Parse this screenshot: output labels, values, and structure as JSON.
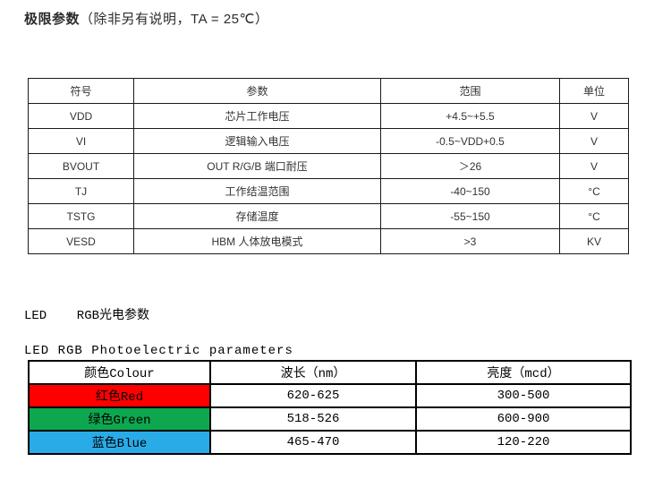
{
  "page": {
    "title_bold": "极限参数",
    "title_rest": "（除非另有说明，TA = 25℃）"
  },
  "limits_table": {
    "headers": [
      "符号",
      "参数",
      "范围",
      "单位"
    ],
    "rows": [
      [
        "VDD",
        "芯片工作电压",
        "+4.5~+5.5",
        "V"
      ],
      [
        "VI",
        "逻辑输入电压",
        "-0.5~VDD+0.5",
        "V"
      ],
      [
        "BVOUT",
        "OUT R/G/B 端口耐压",
        "＞26",
        "V"
      ],
      [
        "TJ",
        "工作结温范围",
        "-40~150",
        "°C"
      ],
      [
        "TSTG",
        "存储温度",
        "-55~150",
        "°C"
      ],
      [
        "VESD",
        "HBM 人体放电模式",
        ">3",
        "KV"
      ]
    ]
  },
  "led_section": {
    "heading_cn": "LED    RGB光电参数",
    "heading_en": "LED RGB Photoelectric parameters"
  },
  "rgb_table": {
    "headers": [
      "颜色Colour",
      "波长（nm）",
      "亮度（mcd）"
    ],
    "rows": [
      {
        "label": "红色Red",
        "color": "#ff0000",
        "wavelength": "620-625",
        "brightness": "300-500"
      },
      {
        "label": "绿色Green",
        "color": "#0da74f",
        "wavelength": "518-526",
        "brightness": "600-900"
      },
      {
        "label": "蓝色Blue",
        "color": "#29abe8",
        "wavelength": "465-470",
        "brightness": "120-220"
      }
    ]
  }
}
